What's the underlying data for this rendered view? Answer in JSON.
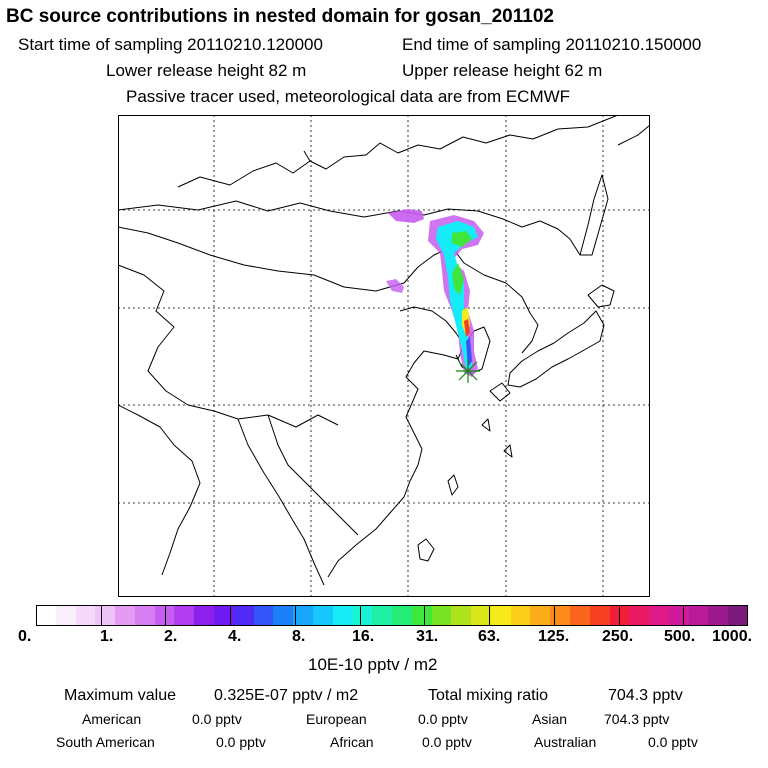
{
  "header": {
    "title": "BC  source contributions in nested domain for gosan_201102",
    "start_label": "Start time of sampling 20110210.120000",
    "end_label": "End time of sampling 20110210.150000",
    "lower_label": "Lower release height   82 m",
    "upper_label": "Upper release height   62 m",
    "info": "Passive tracer used, meteorological data are from ECMWF"
  },
  "colorbar": {
    "ticks": [
      "0.",
      "1.",
      "2.",
      "4.",
      "8.",
      "16.",
      "31.",
      "63.",
      "125.",
      "250.",
      "500.",
      "1000."
    ],
    "unit": "10E-10 pptv / m2",
    "colors": [
      "#ffffff",
      "#fbeffd",
      "#f6dafb",
      "#f0c3f9",
      "#e39bf4",
      "#d67ef1",
      "#c65df0",
      "#b13cf0",
      "#8e20ee",
      "#6f1aee",
      "#4f2cf4",
      "#3455f8",
      "#1e7ffb",
      "#18a6fc",
      "#16c7fc",
      "#16ecf8",
      "#19f3d6",
      "#1ff0a6",
      "#25ec72",
      "#3fe63c",
      "#78e224",
      "#aee21c",
      "#d8e61a",
      "#f6ea1a",
      "#fcd01a",
      "#fcab1a",
      "#fc8b1a",
      "#fb641c",
      "#f63e22",
      "#f01e36",
      "#ea1a62",
      "#e01a88",
      "#cf1a9a",
      "#b81a99",
      "#9c1a8e",
      "#7a1a7a"
    ]
  },
  "stats": {
    "max_label": "Maximum value",
    "max_value": "0.325E-07 pptv / m2",
    "total_label": "Total mixing ratio",
    "total_value": "704.3 pptv"
  },
  "regions": [
    {
      "name": "American",
      "value": "0.0 pptv"
    },
    {
      "name": "European",
      "value": "0.0 pptv"
    },
    {
      "name": "Asian",
      "value": "704.3 pptv"
    },
    {
      "name": "South American",
      "value": "0.0 pptv"
    },
    {
      "name": "African",
      "value": "0.0 pptv"
    },
    {
      "name": "Australian",
      "value": "0.0 pptv"
    }
  ],
  "map": {
    "gridline_color": "#000000",
    "plume_colors": [
      "#c65df0",
      "#16ecf8",
      "#3fe63c",
      "#f6ea1a",
      "#f63e22",
      "#3455f8"
    ],
    "receptor_marker": "green-star"
  }
}
